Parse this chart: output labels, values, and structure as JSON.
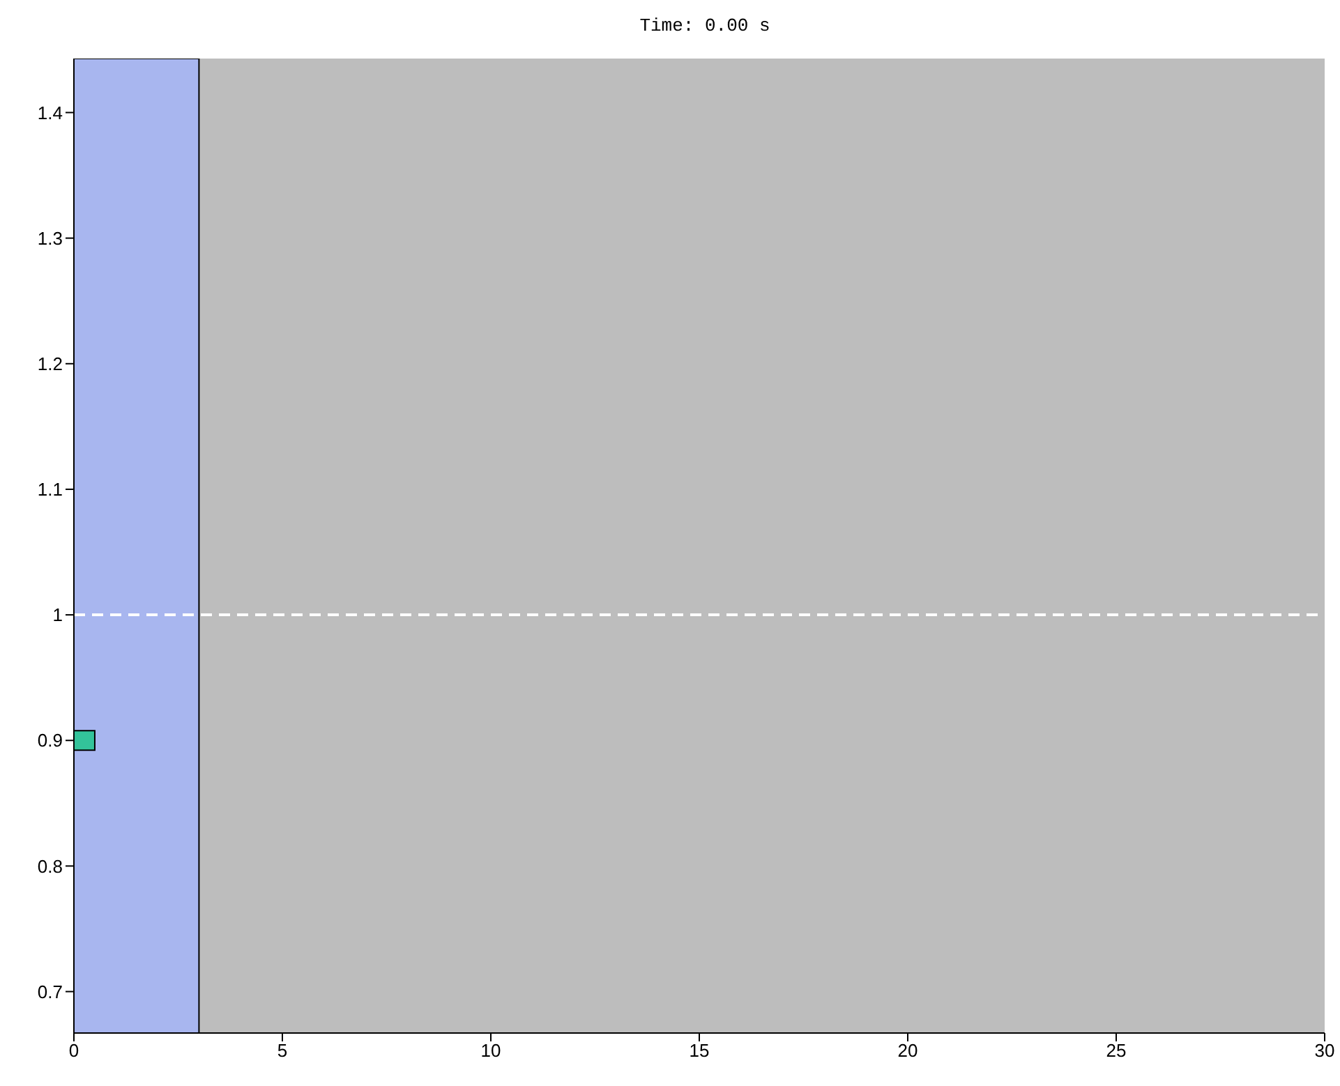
{
  "chart_data": {
    "type": "scatter",
    "title": "Time: 0.00 s",
    "x": [
      0.25
    ],
    "series": [
      {
        "color": "#33c39a",
        "values": [
          0.9
        ]
      }
    ],
    "marker": "square",
    "xlim": [
      0,
      30
    ],
    "xticks": [
      0,
      5,
      10,
      15,
      20,
      25,
      30
    ],
    "ylim": [
      0.667,
      1.443
    ],
    "yticks": [
      0.7,
      0.8,
      0.9,
      1,
      1.1,
      1.2,
      1.3,
      1.4
    ],
    "bands": [
      {
        "axis": "x",
        "from": 0,
        "to": 3,
        "color": "#a8b6ef"
      }
    ],
    "ref_lines": [
      {
        "axis": "y",
        "value": 1,
        "color": "#ffffff",
        "line_style": "dashed"
      }
    ],
    "grid": false
  }
}
